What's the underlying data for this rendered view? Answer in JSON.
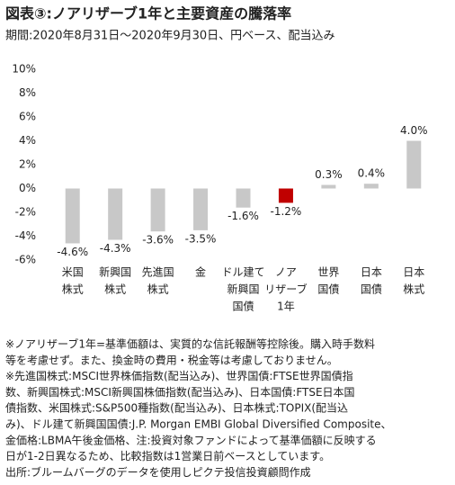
{
  "chart_data": {
    "type": "bar",
    "title": "図表③:ノアリザーブ1年と主要資産の騰落率",
    "subtitle": "期間:2020年8月31日～2020年9月30日、円ベース、配当込み",
    "categories": [
      [
        "米国",
        "株式"
      ],
      [
        "新興国",
        "株式"
      ],
      [
        "先進国",
        "株式"
      ],
      [
        "金"
      ],
      [
        "ドル建て",
        "新興国",
        "国債"
      ],
      [
        "ノア",
        "リザーブ",
        "1年"
      ],
      [
        "世界",
        "国債"
      ],
      [
        "日本",
        "国債"
      ],
      [
        "日本",
        "株式"
      ]
    ],
    "values": [
      -4.6,
      -4.3,
      -3.6,
      -3.5,
      -1.6,
      -1.2,
      0.3,
      0.4,
      4.0
    ],
    "value_labels": [
      "-4.6%",
      "-4.3%",
      "-3.6%",
      "-3.5%",
      "-1.6%",
      "-1.2%",
      "0.3%",
      "0.4%",
      "4.0%"
    ],
    "colors": [
      "#c8c8c8",
      "#c8c8c8",
      "#c8c8c8",
      "#c8c8c8",
      "#c8c8c8",
      "#c00000",
      "#c8c8c8",
      "#c8c8c8",
      "#c8c8c8"
    ],
    "ylim": [
      -6,
      10
    ],
    "yticks": [
      {
        "value": -6,
        "label": "-6%"
      },
      {
        "value": -4,
        "label": "-4%"
      },
      {
        "value": -2,
        "label": "-2%"
      },
      {
        "value": 0,
        "label": "0%"
      },
      {
        "value": 2,
        "label": "2%"
      },
      {
        "value": 4,
        "label": "4%"
      },
      {
        "value": 6,
        "label": "6%"
      },
      {
        "value": 8,
        "label": "8%"
      },
      {
        "value": 10,
        "label": "10%"
      }
    ],
    "grid": false,
    "notes": [
      "※ノアリザーブ1年=基準価額は、実質的な信託報酬等控除後。購入時手数料",
      "等を考慮せず。また、換金時の費用・税金等は考慮しておりません。",
      "※先進国株式:MSCI世界株価指数(配当込み)、世界国債:FTSE世界国債指",
      "数、新興国株式:MSCI新興国株価指数(配当込み)、日本国債:FTSE日本国",
      "債指数、米国株式:S&P500種指数(配当込み)、日本株式:TOPIX(配当込",
      "み)、ドル建て新興国国債:J.P. Morgan EMBI Global Diversified Composite、",
      "金価格:LBMA午後金価格、注:投資対象ファンドによって基準価額に反映する",
      "日が1-2日異なるため、比較指数は1営業日前ベースとしています。",
      "出所:ブルームバーグのデータを使用しピクテ投信投資顧問作成"
    ]
  }
}
